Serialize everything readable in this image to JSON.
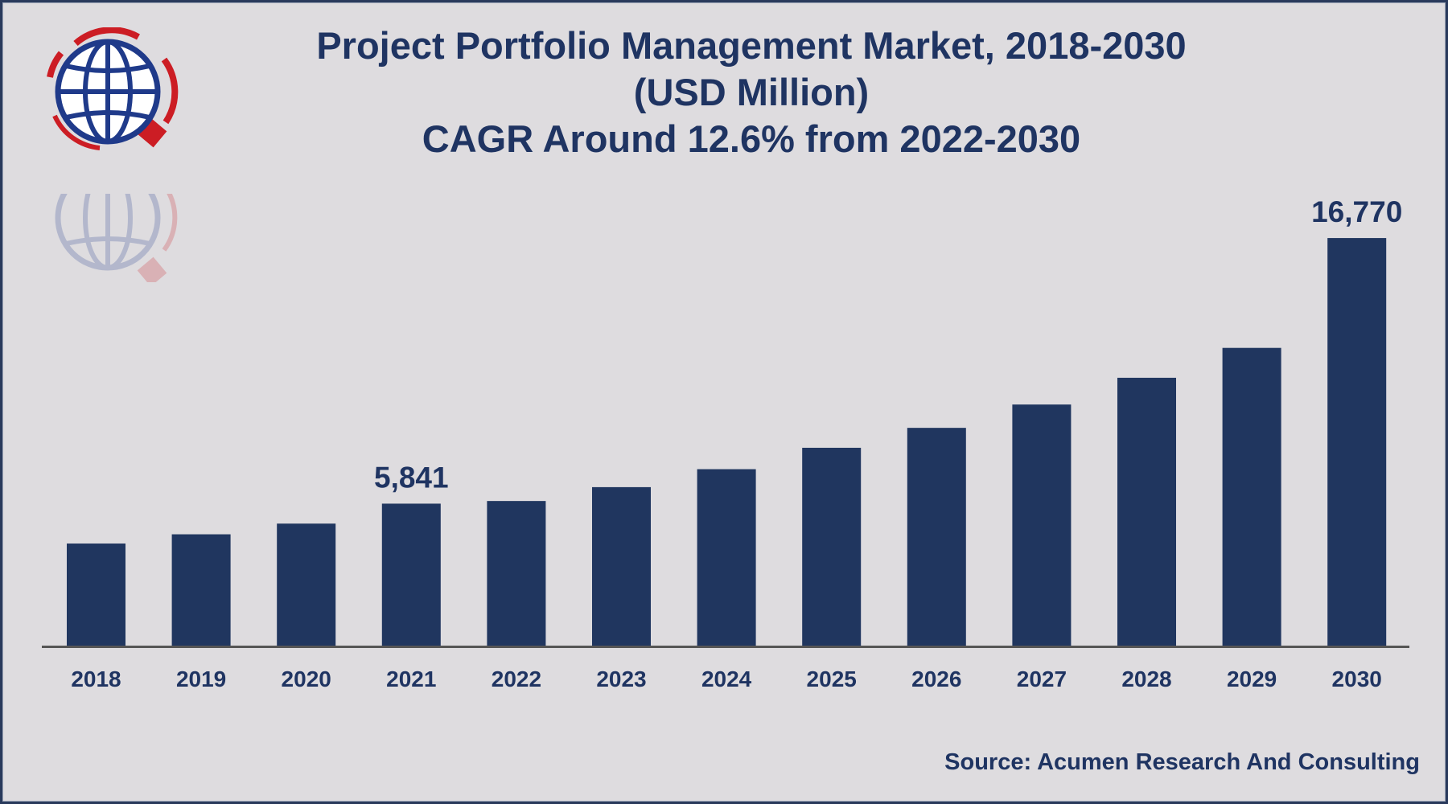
{
  "chart_data": {
    "type": "bar",
    "title": "Project Portfolio Management Market, 2018-2030",
    "subtitle": "(USD Million)",
    "subtitle2": "CAGR Around 12.6% from 2022-2030",
    "categories": [
      "2018",
      "2019",
      "2020",
      "2021",
      "2022",
      "2023",
      "2024",
      "2025",
      "2026",
      "2027",
      "2028",
      "2029",
      "2030"
    ],
    "values": [
      4200,
      4580,
      5020,
      5841,
      5950,
      6520,
      7260,
      8140,
      8960,
      9920,
      11020,
      12250,
      16770
    ],
    "data_labels": [
      {
        "category": "2021",
        "text": "5,841"
      },
      {
        "category": "2030",
        "text": "16,770"
      }
    ],
    "xlabel": "",
    "ylabel": "",
    "ylim": [
      0,
      17500
    ],
    "grid": false,
    "legend": "none",
    "bar_color": "#20365f",
    "axis_color": "#555555"
  },
  "source": "Source: Acumen Research And Consulting",
  "logo": {
    "icon": "globe-logo-icon",
    "colors": {
      "globe": "#1f3a8a",
      "arrows": "#cc1d24"
    }
  }
}
